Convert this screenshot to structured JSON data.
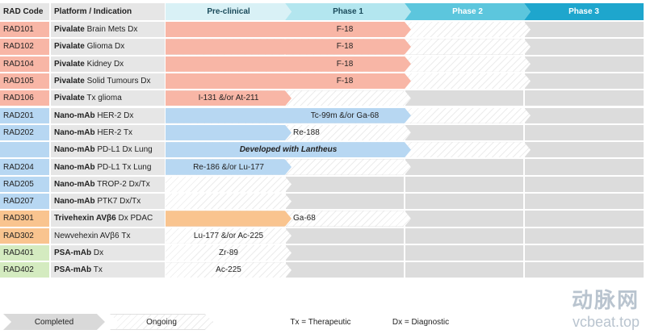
{
  "headers": {
    "code": "RAD Code",
    "platform": "Platform / Indication",
    "phases": [
      "Pre-clinical",
      "Phase 1",
      "Phase 2",
      "Phase 3"
    ]
  },
  "colors": {
    "pivalate": "#f8b6a6",
    "nano_mab": "#b7d7f2",
    "trivehexin": "#f9c48f",
    "psa_mab": "#d4ebc0",
    "preclinical_header": "#d9f1f6",
    "phase1_header": "#b3e6ef",
    "phase2_header": "#5cc6dd",
    "phase3_header": "#1ea6cd",
    "track": "#dcdcdc",
    "completed": "#d9d9d9"
  },
  "rows": [
    {
      "code": "RAD101",
      "family": "pivalate",
      "platform_bold": "Pivalate",
      "platform_rest": " Brain Mets Dx",
      "bar_label": "F-18",
      "label_italic": false,
      "completed_phase": 1,
      "ongoing_label": ""
    },
    {
      "code": "RAD102",
      "family": "pivalate",
      "platform_bold": "Pivalate",
      "platform_rest": " Glioma Dx",
      "bar_label": "F-18",
      "label_italic": false,
      "completed_phase": 1,
      "ongoing_label": ""
    },
    {
      "code": "RAD104",
      "family": "pivalate",
      "platform_bold": "Pivalate",
      "platform_rest": " Kidney Dx",
      "bar_label": "F-18",
      "label_italic": false,
      "completed_phase": 1,
      "ongoing_label": ""
    },
    {
      "code": "RAD105",
      "family": "pivalate",
      "platform_bold": "Pivalate",
      "platform_rest": " Solid Tumours Dx",
      "bar_label": "F-18",
      "label_italic": false,
      "completed_phase": 1,
      "ongoing_label": ""
    },
    {
      "code": "RAD106",
      "family": "pivalate",
      "platform_bold": "Pivalate",
      "platform_rest": " Tx glioma",
      "bar_label": "I-131 &/or At-211",
      "label_italic": false,
      "completed_phase": 0,
      "ongoing_label": ""
    },
    {
      "code": "RAD201",
      "family": "nano_mab",
      "platform_bold": "Nano-mAb",
      "platform_rest": " HER-2 Dx",
      "bar_label": "Tc-99m &/or Ga-68",
      "label_italic": false,
      "completed_phase": 1,
      "ongoing_label": ""
    },
    {
      "code": "RAD202",
      "family": "nano_mab",
      "platform_bold": "Nano-mAb",
      "platform_rest": " HER-2 Tx",
      "bar_label": "",
      "label_italic": false,
      "completed_phase": 0,
      "ongoing_label": "Re-188"
    },
    {
      "code": "",
      "family": "nano_mab",
      "platform_bold": "Nano-mAb",
      "platform_rest": " PD-L1 Dx Lung",
      "bar_label": "Developed with Lantheus",
      "label_italic": true,
      "completed_phase": 1,
      "ongoing_label": ""
    },
    {
      "code": "RAD204",
      "family": "nano_mab",
      "platform_bold": "Nano-mAb",
      "platform_rest": " PD-L1 Tx Lung",
      "bar_label": "Re-186 &/or Lu-177",
      "label_italic": false,
      "completed_phase": 0,
      "ongoing_label": ""
    },
    {
      "code": "RAD205",
      "family": "nano_mab",
      "platform_bold": "Nano-mAb",
      "platform_rest": " TROP-2 Dx/Tx",
      "bar_label": "",
      "label_italic": false,
      "completed_phase": -1,
      "ongoing_label": ""
    },
    {
      "code": "RAD207",
      "family": "nano_mab",
      "platform_bold": "Nano-mAb",
      "platform_rest": " PTK7 Dx/Tx",
      "bar_label": "",
      "label_italic": false,
      "completed_phase": -1,
      "ongoing_label": ""
    },
    {
      "code": "RAD301",
      "family": "trivehexin",
      "platform_bold": "Trivehexin AVβ6",
      "platform_rest": " Dx PDAC",
      "bar_label": "",
      "label_italic": false,
      "completed_phase": 0,
      "ongoing_label": "Ga-68"
    },
    {
      "code": "RAD302",
      "family": "trivehexin",
      "platform_bold": "",
      "platform_rest": "Newvehexin AVβ6 Tx",
      "bar_label": "Lu-177 &/or Ac-225",
      "label_italic": false,
      "completed_phase": -1,
      "ongoing_label": ""
    },
    {
      "code": "RAD401",
      "family": "psa_mab",
      "platform_bold": "PSA-mAb",
      "platform_rest": " Dx",
      "bar_label": "Zr-89",
      "label_italic": false,
      "completed_phase": -1,
      "ongoing_label": ""
    },
    {
      "code": "RAD402",
      "family": "psa_mab",
      "platform_bold": "PSA-mAb",
      "platform_rest": " Tx",
      "bar_label": "Ac-225",
      "label_italic": false,
      "completed_phase": -1,
      "ongoing_label": ""
    }
  ],
  "legend": {
    "completed": "Completed",
    "ongoing": "Ongoing",
    "tx": "Tx = Therapeutic",
    "dx": "Dx = Diagnostic"
  },
  "watermark": {
    "cn": "动脉网",
    "url": "vcbeat.top"
  }
}
